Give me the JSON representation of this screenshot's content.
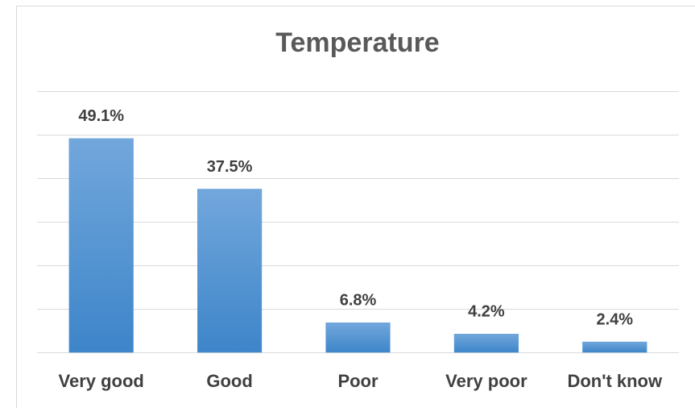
{
  "chart_data": {
    "type": "bar",
    "title": "Temperature",
    "categories": [
      "Very good",
      "Good",
      "Poor",
      "Very poor",
      "Don't know"
    ],
    "values": [
      49.1,
      37.5,
      6.8,
      4.2,
      2.4
    ],
    "value_labels": [
      "49.1%",
      "37.5%",
      "6.8%",
      "4.2%",
      "2.4%"
    ],
    "color": "#5b9bd5",
    "ylim": [
      0,
      60
    ],
    "yticks": [
      0,
      10,
      20,
      30,
      40,
      50,
      60
    ],
    "grid": true
  }
}
